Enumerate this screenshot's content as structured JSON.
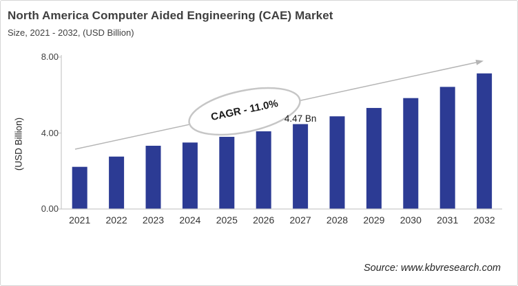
{
  "card": {
    "title": "North America Computer Aided Engineering (CAE) Market",
    "subtitle": "Size, 2021 - 2032, (USD Billion)",
    "source": "Source: www.kbvresearch.com"
  },
  "chart_data": {
    "type": "bar",
    "title": "North America Computer Aided Engineering (CAE) Market Size, 2021 - 2032, (USD Billion)",
    "categories": [
      "2021",
      "2022",
      "2023",
      "2024",
      "2025",
      "2026",
      "2027",
      "2028",
      "2029",
      "2030",
      "2031",
      "2032"
    ],
    "values": [
      2.22,
      2.76,
      3.33,
      3.5,
      3.8,
      4.09,
      4.47,
      4.88,
      5.32,
      5.84,
      6.43,
      7.14
    ],
    "xlabel": "",
    "ylabel": "(USD Billion)",
    "ylim": [
      0,
      8
    ],
    "yticks": [
      {
        "label": "0.00",
        "value": 0
      },
      {
        "label": "4.00",
        "value": 4
      },
      {
        "label": "8.00",
        "value": 8
      }
    ],
    "grid": false,
    "legend": "none",
    "annotations": {
      "cagr_label": "CAGR - 11.0%",
      "value_label": "4.47 Bn",
      "value_label_category": "2027",
      "trend_arrow": true
    },
    "colors": {
      "bar": "#2c3b94",
      "axis": "#c9c9c9",
      "trend": "#b5b5b5",
      "ellipse_stroke": "#c6c6c6",
      "ellipse_fill": "#ffffff",
      "text": "#3f3f3f"
    }
  }
}
